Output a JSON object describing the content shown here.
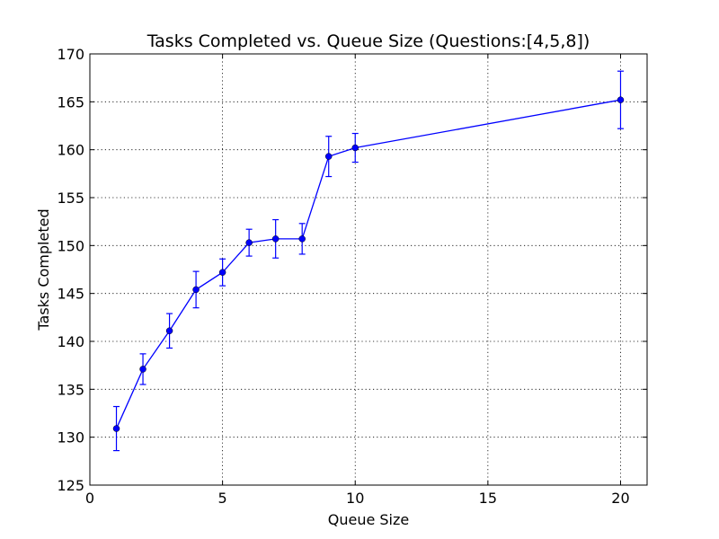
{
  "chart_data": {
    "type": "line",
    "title": "Tasks Completed vs. Queue Size (Questions:[4,5,8])",
    "xlabel": "Queue Size",
    "ylabel": "Tasks Completed",
    "xlim": [
      0,
      21
    ],
    "ylim": [
      125,
      170
    ],
    "xticks": [
      0,
      5,
      10,
      15,
      20
    ],
    "yticks": [
      125,
      130,
      135,
      140,
      145,
      150,
      155,
      160,
      165,
      170
    ],
    "grid": true,
    "series": [
      {
        "color": "#0000ff",
        "marker": "circle",
        "x": [
          1,
          2,
          3,
          4,
          5,
          6,
          7,
          8,
          9,
          10,
          20
        ],
        "y": [
          130.9,
          137.1,
          141.1,
          145.4,
          147.2,
          150.3,
          150.7,
          150.7,
          159.3,
          160.2,
          165.2
        ],
        "y_err": [
          2.3,
          1.6,
          1.8,
          1.9,
          1.4,
          1.4,
          2.0,
          1.6,
          2.1,
          1.5,
          3.0
        ]
      }
    ]
  }
}
